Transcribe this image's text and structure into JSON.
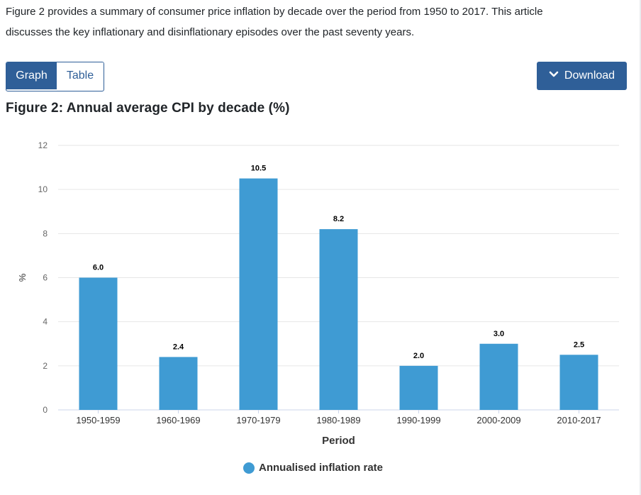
{
  "intro": {
    "line1": "Figure 2 provides a summary of consumer price inflation by decade over the period from 1950 to 2017. This article",
    "line2": "discusses the key inflationary and disinflationary episodes over the past seventy years."
  },
  "toggle": {
    "graph_label": "Graph",
    "table_label": "Table"
  },
  "download": {
    "label": "Download",
    "icon": "chevron-down-icon"
  },
  "figure_title": "Figure 2: Annual average CPI by decade (%)",
  "colors": {
    "accent": "#2f5f98",
    "bar": "#3f9bd3",
    "grid": "#e6e6e6"
  },
  "chart_data": {
    "type": "bar",
    "title": "Figure 2: Annual average CPI by decade (%)",
    "xlabel": "Period",
    "ylabel": "%",
    "ylim": [
      0,
      12
    ],
    "yticks": [
      0,
      2,
      4,
      6,
      8,
      10,
      12
    ],
    "categories": [
      "1950-1959",
      "1960-1969",
      "1970-1979",
      "1980-1989",
      "1990-1999",
      "2000-2009",
      "2010-2017"
    ],
    "series": [
      {
        "name": "Annualised inflation rate",
        "values": [
          6.0,
          2.4,
          10.5,
          8.2,
          2.0,
          3.0,
          2.5
        ],
        "labels": [
          "6.0",
          "2.4",
          "10.5",
          "8.2",
          "2.0",
          "3.0",
          "2.5"
        ]
      }
    ],
    "grid": true,
    "legend_position": "bottom-center"
  }
}
